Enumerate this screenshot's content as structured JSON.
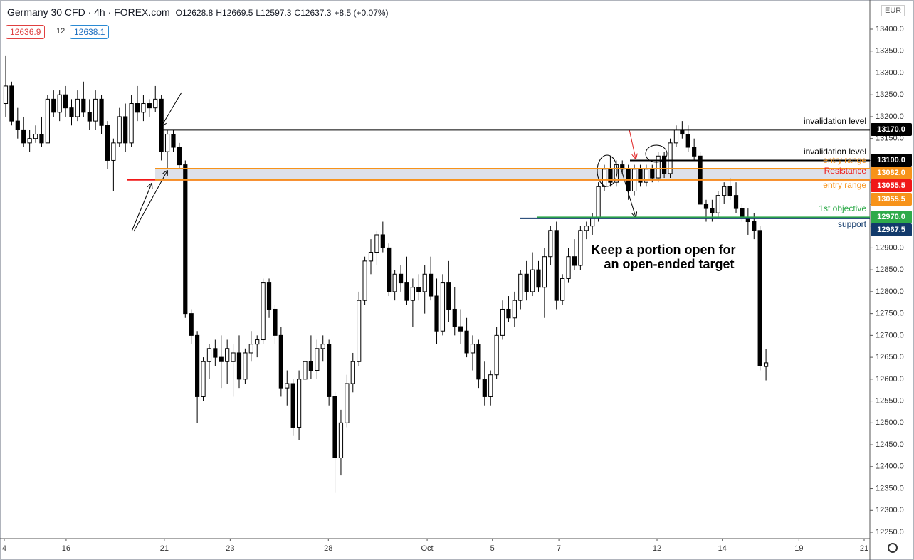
{
  "header": {
    "title": "Germany 30 CFD · 4h · FOREX.com",
    "open": "O12628.8",
    "high": "H12669.5",
    "low": "L12597.3",
    "close": "C12637.3",
    "change": "+8.5 (+0.07%)",
    "bid": "12636.9",
    "spread": "12",
    "ask": "12638.1",
    "currency": "EUR"
  },
  "chart_data": {
    "type": "candlestick",
    "annotation": [
      "Keep a portion open for",
      "an open-ended target"
    ],
    "ylim": [
      12235.4,
      13466.7
    ],
    "yticks": [
      {
        "value": 12250,
        "label": "12250.0"
      },
      {
        "value": 12300,
        "label": "12300.0"
      },
      {
        "value": 12350,
        "label": "12350.0"
      },
      {
        "value": 12400,
        "label": "12400.0"
      },
      {
        "value": 12450,
        "label": "12450.0"
      },
      {
        "value": 12500,
        "label": "12500.0"
      },
      {
        "value": 12550,
        "label": "12550.0"
      },
      {
        "value": 12600,
        "label": "12600.0"
      },
      {
        "value": 12650,
        "label": "12650.0"
      },
      {
        "value": 12700,
        "label": "12700.0"
      },
      {
        "value": 12750,
        "label": "12750.0"
      },
      {
        "value": 12800,
        "label": "12800.0"
      },
      {
        "value": 12850,
        "label": "12850.0"
      },
      {
        "value": 12900,
        "label": "12900.0"
      },
      {
        "value": 12950,
        "label": "12950.0"
      },
      {
        "value": 13000,
        "label": "13000.0"
      },
      {
        "value": 13050,
        "label": "13050.0"
      },
      {
        "value": 13100,
        "label": "13100.0"
      },
      {
        "value": 13150,
        "label": "13150.0"
      },
      {
        "value": 13200,
        "label": "13200.0"
      },
      {
        "value": 13250,
        "label": "13250.0"
      },
      {
        "value": 13300,
        "label": "13300.0"
      },
      {
        "value": 13350,
        "label": "13350.0"
      },
      {
        "value": 13400,
        "label": "13400.0"
      }
    ],
    "xlim": [
      -0.95,
      144.35
    ],
    "xticks": [
      {
        "value": -0.24,
        "label": "4"
      },
      {
        "value": 10.1,
        "label": "16"
      },
      {
        "value": 26.5,
        "label": "21"
      },
      {
        "value": 37.5,
        "label": "23"
      },
      {
        "value": 53.9,
        "label": "28"
      },
      {
        "value": 70.4,
        "label": "Oct"
      },
      {
        "value": 81.3,
        "label": "5"
      },
      {
        "value": 92.4,
        "label": "7"
      },
      {
        "value": 108.8,
        "label": "12"
      },
      {
        "value": 119.7,
        "label": "14"
      },
      {
        "value": 132.5,
        "label": "19"
      },
      {
        "value": 143.4,
        "label": "21"
      }
    ],
    "up_color": "#ffffff",
    "down_color": "#000000",
    "levels": [
      {
        "name": "invalidation level",
        "value": 13170,
        "value_label": "13170.0",
        "color": "#000000"
      },
      {
        "name": "invalidation level",
        "value": 13100,
        "value_label": "13100.0",
        "color": "#000000"
      },
      {
        "name": "entry range",
        "value": 13082,
        "value_label": "13082.0",
        "color": "#f7931a"
      },
      {
        "name": "Resistance",
        "value": 13055.5,
        "value_label": "13055.5",
        "color": "#f01818"
      },
      {
        "name": "entry range",
        "value": 13055.5,
        "value_label": "13055.5",
        "color": "#f7931a"
      },
      {
        "name": "1st objective",
        "value": 12970,
        "value_label": "12970.0",
        "color": "#2eaa4a"
      },
      {
        "name": "support",
        "value": 12967.5,
        "value_label": "12967.5",
        "color": "#123a6b"
      }
    ],
    "candles": [
      [
        13230,
        13340,
        13200,
        13270
      ],
      [
        13270,
        13280,
        13180,
        13190
      ],
      [
        13190,
        13220,
        13150,
        13170
      ],
      [
        13170,
        13200,
        13130,
        13140
      ],
      [
        13140,
        13170,
        13120,
        13150
      ],
      [
        13150,
        13180,
        13140,
        13160
      ],
      [
        13160,
        13200,
        13130,
        13140
      ],
      [
        13140,
        13250,
        13140,
        13240
      ],
      [
        13240,
        13260,
        13200,
        13210
      ],
      [
        13210,
        13260,
        13190,
        13250
      ],
      [
        13250,
        13270,
        13200,
        13220
      ],
      [
        13220,
        13240,
        13180,
        13200
      ],
      [
        13200,
        13260,
        13190,
        13240
      ],
      [
        13240,
        13280,
        13200,
        13210
      ],
      [
        13210,
        13240,
        13170,
        13190
      ],
      [
        13190,
        13260,
        13170,
        13240
      ],
      [
        13240,
        13250,
        13160,
        13180
      ],
      [
        13180,
        13190,
        13080,
        13100
      ],
      [
        13100,
        13150,
        13030,
        13140
      ],
      [
        13140,
        13220,
        13130,
        13200
      ],
      [
        13200,
        13230,
        13120,
        13140
      ],
      [
        13140,
        13250,
        13130,
        13230
      ],
      [
        13230,
        13270,
        13190,
        13210
      ],
      [
        13210,
        13250,
        13190,
        13230
      ],
      [
        13230,
        13240,
        13200,
        13220
      ],
      [
        13220,
        13270,
        13210,
        13240
      ],
      [
        13240,
        13250,
        13100,
        13120
      ],
      [
        13120,
        13170,
        13080,
        13160
      ],
      [
        13160,
        13170,
        13120,
        13130
      ],
      [
        13130,
        13140,
        13080,
        13090
      ],
      [
        13090,
        13100,
        12740,
        12750
      ],
      [
        12750,
        12760,
        12680,
        12700
      ],
      [
        12700,
        12710,
        12500,
        12560
      ],
      [
        12560,
        12650,
        12550,
        12640
      ],
      [
        12640,
        12680,
        12600,
        12670
      ],
      [
        12670,
        12690,
        12630,
        12650
      ],
      [
        12650,
        12700,
        12580,
        12640
      ],
      [
        12640,
        12690,
        12590,
        12670
      ],
      [
        12640,
        12680,
        12560,
        12660
      ],
      [
        12660,
        12700,
        12580,
        12600
      ],
      [
        12600,
        12670,
        12590,
        12660
      ],
      [
        12660,
        12710,
        12640,
        12680
      ],
      [
        12680,
        12700,
        12650,
        12690
      ],
      [
        12690,
        12830,
        12680,
        12820
      ],
      [
        12820,
        12830,
        12740,
        12760
      ],
      [
        12760,
        12770,
        12680,
        12700
      ],
      [
        12700,
        12720,
        12560,
        12580
      ],
      [
        12580,
        12620,
        12540,
        12590
      ],
      [
        12590,
        12600,
        12470,
        12490
      ],
      [
        12490,
        12620,
        12460,
        12600
      ],
      [
        12600,
        12660,
        12580,
        12640
      ],
      [
        12640,
        12700,
        12600,
        12620
      ],
      [
        12620,
        12690,
        12600,
        12670
      ],
      [
        12670,
        12700,
        12640,
        12680
      ],
      [
        12680,
        12690,
        12540,
        12560
      ],
      [
        12560,
        12570,
        12340,
        12420
      ],
      [
        12420,
        12530,
        12380,
        12500
      ],
      [
        12500,
        12610,
        12490,
        12590
      ],
      [
        12590,
        12660,
        12570,
        12640
      ],
      [
        12640,
        12800,
        12630,
        12780
      ],
      [
        12780,
        12880,
        12770,
        12870
      ],
      [
        12870,
        12920,
        12840,
        12890
      ],
      [
        12890,
        12940,
        12860,
        12930
      ],
      [
        12930,
        12960,
        12890,
        12900
      ],
      [
        12900,
        12910,
        12790,
        12800
      ],
      [
        12800,
        12850,
        12780,
        12840
      ],
      [
        12840,
        12860,
        12800,
        12820
      ],
      [
        12820,
        12880,
        12770,
        12780
      ],
      [
        12780,
        12830,
        12720,
        12810
      ],
      [
        12810,
        12840,
        12780,
        12800
      ],
      [
        12800,
        12860,
        12750,
        12840
      ],
      [
        12840,
        12880,
        12780,
        12790
      ],
      [
        12790,
        12830,
        12680,
        12710
      ],
      [
        12710,
        12840,
        12700,
        12820
      ],
      [
        12820,
        12870,
        12730,
        12760
      ],
      [
        12760,
        12810,
        12700,
        12720
      ],
      [
        12720,
        12760,
        12680,
        12710
      ],
      [
        12710,
        12740,
        12650,
        12660
      ],
      [
        12660,
        12700,
        12620,
        12680
      ],
      [
        12680,
        12690,
        12580,
        12600
      ],
      [
        12600,
        12640,
        12540,
        12560
      ],
      [
        12560,
        12620,
        12540,
        12610
      ],
      [
        12610,
        12720,
        12600,
        12700
      ],
      [
        12700,
        12780,
        12690,
        12760
      ],
      [
        12760,
        12790,
        12730,
        12740
      ],
      [
        12740,
        12800,
        12720,
        12780
      ],
      [
        12780,
        12850,
        12760,
        12840
      ],
      [
        12840,
        12870,
        12780,
        12800
      ],
      [
        12800,
        12890,
        12790,
        12850
      ],
      [
        12850,
        12870,
        12800,
        12810
      ],
      [
        12810,
        12900,
        12740,
        12880
      ],
      [
        12880,
        12950,
        12860,
        12940
      ],
      [
        12940,
        12960,
        12760,
        12780
      ],
      [
        12780,
        12840,
        12770,
        12830
      ],
      [
        12830,
        12900,
        12820,
        12880
      ],
      [
        12880,
        12920,
        12850,
        12860
      ],
      [
        12860,
        12950,
        12850,
        12940
      ],
      [
        12940,
        12960,
        12920,
        12950
      ],
      [
        12950,
        12980,
        12930,
        12970
      ],
      [
        12970,
        13050,
        12960,
        13040
      ],
      [
        13040,
        13090,
        13030,
        13080
      ],
      [
        13080,
        13110,
        13040,
        13050
      ],
      [
        13050,
        13100,
        13040,
        13090
      ],
      [
        13090,
        13100,
        13070,
        13080
      ],
      [
        13080,
        13090,
        13010,
        13030
      ],
      [
        13030,
        13090,
        13020,
        13080
      ],
      [
        13080,
        13090,
        13040,
        13050
      ],
      [
        13050,
        13090,
        13040,
        13080
      ],
      [
        13080,
        13090,
        13050,
        13060
      ],
      [
        13060,
        13120,
        13050,
        13110
      ],
      [
        13110,
        13120,
        13060,
        13070
      ],
      [
        13070,
        13150,
        13060,
        13140
      ],
      [
        13140,
        13180,
        13130,
        13170
      ],
      [
        13170,
        13190,
        13150,
        13160
      ],
      [
        13160,
        13180,
        13120,
        13130
      ],
      [
        13130,
        13150,
        13100,
        13110
      ],
      [
        13110,
        13120,
        13000,
        13000
      ],
      [
        13000,
        13010,
        12960,
        12990
      ],
      [
        12990,
        13010,
        12960,
        12980
      ],
      [
        12980,
        13030,
        12970,
        13020
      ],
      [
        13020,
        13050,
        13000,
        13040
      ],
      [
        13040,
        13060,
        13010,
        13020
      ],
      [
        13020,
        13050,
        12980,
        12990
      ],
      [
        12990,
        13000,
        12960,
        12970
      ],
      [
        12970,
        12990,
        12930,
        12960
      ],
      [
        12960,
        12980,
        12920,
        12940
      ],
      [
        12940,
        12950,
        12620,
        12630
      ],
      [
        12628.8,
        12669.5,
        12597.3,
        12637.3
      ]
    ]
  }
}
